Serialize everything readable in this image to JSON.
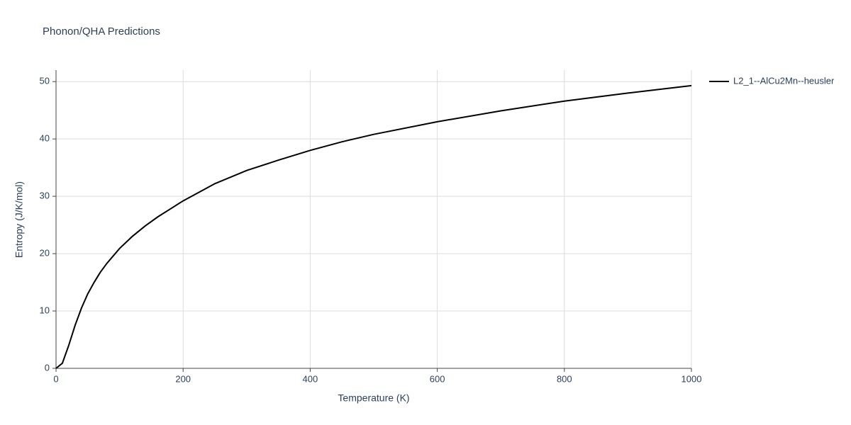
{
  "chart_data": {
    "type": "line",
    "title": "Phonon/QHA Predictions",
    "x_label": "Temperature (K)",
    "y_label": "Entropy (J/K/mol)",
    "x": [
      0,
      10,
      20,
      30,
      40,
      50,
      60,
      70,
      80,
      90,
      100,
      120,
      140,
      160,
      180,
      200,
      250,
      300,
      350,
      400,
      450,
      500,
      600,
      700,
      800,
      900,
      1000
    ],
    "series": [
      {
        "name": "L2_1--AlCu2Mn--heusler",
        "color": "#000000",
        "values": [
          0,
          0.9,
          4.0,
          7.5,
          10.5,
          13.0,
          15.0,
          16.8,
          18.3,
          19.6,
          20.9,
          23.0,
          24.8,
          26.4,
          27.8,
          29.2,
          32.2,
          34.5,
          36.3,
          38.0,
          39.5,
          40.8,
          43.0,
          44.9,
          46.6,
          48.0,
          49.3
        ]
      }
    ],
    "xlim": [
      0,
      1000
    ],
    "xticks": [
      0,
      200,
      400,
      600,
      800,
      1000
    ],
    "ylim": [
      0,
      52
    ],
    "yticks": [
      0,
      10,
      20,
      30,
      40,
      50
    ],
    "grid": true,
    "legend": "right"
  }
}
